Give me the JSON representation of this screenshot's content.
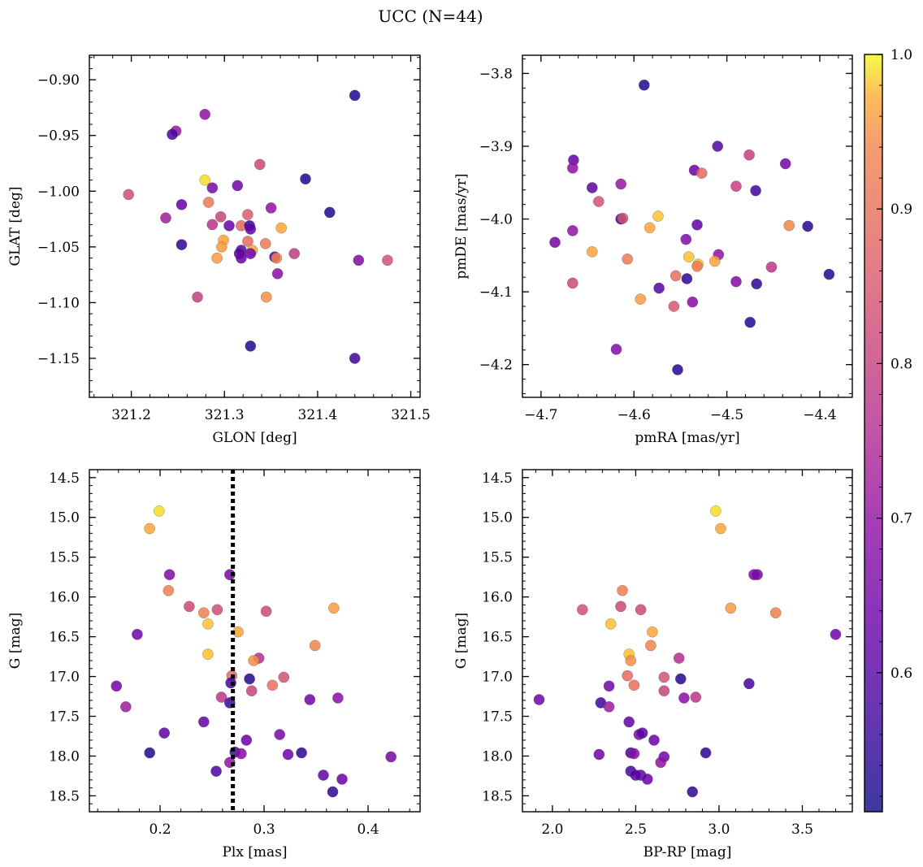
{
  "title": "UCC (N=44)",
  "colorbar": {
    "ticks": [
      "1.0",
      "0.9",
      "0.8",
      "0.7",
      "0.6"
    ],
    "tick_values": [
      1.0,
      0.9,
      0.8,
      0.7,
      0.6
    ],
    "vmin": 0.51,
    "vmax": 1.0,
    "colormap": "plasma"
  },
  "chart_data": [
    {
      "type": "scatter",
      "xlabel": "GLON [deg]",
      "ylabel": "GLAT [deg]",
      "xlim": [
        321.155,
        321.51
      ],
      "ylim": [
        -1.185,
        -0.878
      ],
      "invert_y": false,
      "xticks": [
        321.2,
        321.3,
        321.4,
        321.5
      ],
      "xticklabels": [
        "321.2",
        "321.3",
        "321.4",
        "321.5"
      ],
      "yticks": [
        -0.9,
        -0.95,
        -1.0,
        -1.05,
        -1.1,
        -1.15
      ],
      "yticklabels": [
        "−0.90",
        "−0.95",
        "−1.00",
        "−1.05",
        "−1.10",
        "−1.15"
      ],
      "points": [
        {
          "x": 321.44,
          "y": -0.914,
          "c": 0.53
        },
        {
          "x": 321.279,
          "y": -0.931,
          "c": 0.7
        },
        {
          "x": 321.248,
          "y": -0.946,
          "c": 0.71
        },
        {
          "x": 321.244,
          "y": -0.949,
          "c": 0.58
        },
        {
          "x": 321.338,
          "y": -0.976,
          "c": 0.82
        },
        {
          "x": 321.279,
          "y": -0.99,
          "c": 0.99
        },
        {
          "x": 321.387,
          "y": -0.989,
          "c": 0.53
        },
        {
          "x": 321.287,
          "y": -0.997,
          "c": 0.66
        },
        {
          "x": 321.314,
          "y": -0.995,
          "c": 0.64
        },
        {
          "x": 321.197,
          "y": -1.003,
          "c": 0.83
        },
        {
          "x": 321.254,
          "y": -1.012,
          "c": 0.62
        },
        {
          "x": 321.283,
          "y": -1.01,
          "c": 0.92
        },
        {
          "x": 321.35,
          "y": -1.015,
          "c": 0.7
        },
        {
          "x": 321.413,
          "y": -1.019,
          "c": 0.53
        },
        {
          "x": 321.237,
          "y": -1.024,
          "c": 0.72
        },
        {
          "x": 321.296,
          "y": -1.023,
          "c": 0.81
        },
        {
          "x": 321.325,
          "y": -1.021,
          "c": 0.86
        },
        {
          "x": 321.287,
          "y": -1.03,
          "c": 0.77
        },
        {
          "x": 321.305,
          "y": -1.031,
          "c": 0.63
        },
        {
          "x": 321.318,
          "y": -1.031,
          "c": 0.88
        },
        {
          "x": 321.327,
          "y": -1.031,
          "c": 0.55
        },
        {
          "x": 321.361,
          "y": -1.033,
          "c": 0.97
        },
        {
          "x": 321.254,
          "y": -1.048,
          "c": 0.55
        },
        {
          "x": 321.299,
          "y": -1.044,
          "c": 0.97
        },
        {
          "x": 321.297,
          "y": -1.05,
          "c": 0.96
        },
        {
          "x": 321.325,
          "y": -1.045,
          "c": 0.89
        },
        {
          "x": 321.344,
          "y": -1.047,
          "c": 0.92
        },
        {
          "x": 321.318,
          "y": -1.053,
          "c": 0.6
        },
        {
          "x": 321.33,
          "y": -1.053,
          "c": 0.97
        },
        {
          "x": 321.316,
          "y": -1.056,
          "c": 0.6
        },
        {
          "x": 321.328,
          "y": -1.056,
          "c": 0.64
        },
        {
          "x": 321.354,
          "y": -1.059,
          "c": 0.57
        },
        {
          "x": 321.356,
          "y": -1.06,
          "c": 0.94
        },
        {
          "x": 321.375,
          "y": -1.056,
          "c": 0.79
        },
        {
          "x": 321.292,
          "y": -1.06,
          "c": 0.96
        },
        {
          "x": 321.318,
          "y": -1.06,
          "c": 0.63
        },
        {
          "x": 321.444,
          "y": -1.062,
          "c": 0.67
        },
        {
          "x": 321.475,
          "y": -1.062,
          "c": 0.84
        },
        {
          "x": 321.357,
          "y": -1.074,
          "c": 0.69
        },
        {
          "x": 321.271,
          "y": -1.095,
          "c": 0.8
        },
        {
          "x": 321.345,
          "y": -1.095,
          "c": 0.95
        },
        {
          "x": 321.328,
          "y": -1.139,
          "c": 0.54
        },
        {
          "x": 321.44,
          "y": -1.15,
          "c": 0.57
        },
        {
          "x": 321.328,
          "y": -1.034,
          "c": 0.62
        }
      ]
    },
    {
      "type": "scatter",
      "xlabel": "pmRA [mas/yr]",
      "ylabel": "pmDE [mas/yr]",
      "xlim": [
        -4.72,
        -4.365
      ],
      "ylim": [
        -4.245,
        -3.775
      ],
      "invert_y": false,
      "xticks": [
        -4.7,
        -4.6,
        -4.5,
        -4.4
      ],
      "xticklabels": [
        "−4.7",
        "−4.6",
        "−4.5",
        "−4.4"
      ],
      "yticks": [
        -3.8,
        -3.9,
        -4.0,
        -4.1,
        -4.2
      ],
      "yticklabels": [
        "−3.8",
        "−3.9",
        "−4.0",
        "−4.1",
        "−4.2"
      ],
      "points": [
        {
          "x": -4.589,
          "y": -3.816,
          "c": 0.53
        },
        {
          "x": -4.51,
          "y": -3.9,
          "c": 0.6
        },
        {
          "x": -4.476,
          "y": -3.912,
          "c": 0.8
        },
        {
          "x": -4.665,
          "y": -3.919,
          "c": 0.62
        },
        {
          "x": -4.666,
          "y": -3.93,
          "c": 0.7
        },
        {
          "x": -4.437,
          "y": -3.924,
          "c": 0.65
        },
        {
          "x": -4.535,
          "y": -3.933,
          "c": 0.63
        },
        {
          "x": -4.527,
          "y": -3.937,
          "c": 0.89
        },
        {
          "x": -4.614,
          "y": -3.952,
          "c": 0.71
        },
        {
          "x": -4.645,
          "y": -3.957,
          "c": 0.61
        },
        {
          "x": -4.49,
          "y": -3.955,
          "c": 0.8
        },
        {
          "x": -4.469,
          "y": -3.961,
          "c": 0.57
        },
        {
          "x": -4.638,
          "y": -3.976,
          "c": 0.84
        },
        {
          "x": -4.574,
          "y": -3.996,
          "c": 0.98
        },
        {
          "x": -4.614,
          "y": -4.0,
          "c": 0.55
        },
        {
          "x": -4.612,
          "y": -3.999,
          "c": 0.84
        },
        {
          "x": -4.532,
          "y": -4.008,
          "c": 0.62
        },
        {
          "x": -4.583,
          "y": -4.012,
          "c": 0.97
        },
        {
          "x": -4.433,
          "y": -4.009,
          "c": 0.94
        },
        {
          "x": -4.413,
          "y": -4.01,
          "c": 0.54
        },
        {
          "x": -4.666,
          "y": -4.016,
          "c": 0.7
        },
        {
          "x": -4.685,
          "y": -4.032,
          "c": 0.65
        },
        {
          "x": -4.544,
          "y": -4.028,
          "c": 0.67
        },
        {
          "x": -4.645,
          "y": -4.045,
          "c": 0.97
        },
        {
          "x": -4.509,
          "y": -4.049,
          "c": 0.7
        },
        {
          "x": -4.607,
          "y": -4.055,
          "c": 0.92
        },
        {
          "x": -4.541,
          "y": -4.052,
          "c": 0.98
        },
        {
          "x": -4.513,
          "y": -4.058,
          "c": 0.97
        },
        {
          "x": -4.531,
          "y": -4.062,
          "c": 0.98
        },
        {
          "x": -4.532,
          "y": -4.065,
          "c": 0.92
        },
        {
          "x": -4.452,
          "y": -4.066,
          "c": 0.78
        },
        {
          "x": -4.39,
          "y": -4.076,
          "c": 0.54
        },
        {
          "x": -4.555,
          "y": -4.078,
          "c": 0.9
        },
        {
          "x": -4.543,
          "y": -4.082,
          "c": 0.55
        },
        {
          "x": -4.666,
          "y": -4.088,
          "c": 0.82
        },
        {
          "x": -4.49,
          "y": -4.086,
          "c": 0.67
        },
        {
          "x": -4.468,
          "y": -4.089,
          "c": 0.55
        },
        {
          "x": -4.573,
          "y": -4.095,
          "c": 0.6
        },
        {
          "x": -4.593,
          "y": -4.11,
          "c": 0.96
        },
        {
          "x": -4.537,
          "y": -4.114,
          "c": 0.68
        },
        {
          "x": -4.557,
          "y": -4.12,
          "c": 0.85
        },
        {
          "x": -4.475,
          "y": -4.142,
          "c": 0.54
        },
        {
          "x": -4.619,
          "y": -4.179,
          "c": 0.67
        },
        {
          "x": -4.553,
          "y": -4.207,
          "c": 0.54
        }
      ]
    },
    {
      "type": "scatter",
      "xlabel": "Plx [mas]",
      "ylabel": "G [mag]",
      "xlim": [
        0.132,
        0.45
      ],
      "ylim": [
        18.7,
        14.4
      ],
      "invert_y": true,
      "xticks": [
        0.2,
        0.3,
        0.4
      ],
      "xticklabels": [
        "0.2",
        "0.3",
        "0.4"
      ],
      "yticks": [
        14.5,
        15.0,
        15.5,
        16.0,
        16.5,
        17.0,
        17.5,
        18.0,
        18.5
      ],
      "yticklabels": [
        "14.5",
        "15.0",
        "15.5",
        "16.0",
        "16.5",
        "17.0",
        "17.5",
        "18.0",
        "18.5"
      ],
      "vline": {
        "x": 0.27,
        "style": "dotted"
      },
      "points": [
        {
          "x": 0.199,
          "y": 14.92,
          "c": 0.99
        },
        {
          "x": 0.19,
          "y": 15.14,
          "c": 0.97
        },
        {
          "x": 0.209,
          "y": 15.72,
          "c": 0.67
        },
        {
          "x": 0.267,
          "y": 15.72,
          "c": 0.66
        },
        {
          "x": 0.208,
          "y": 15.92,
          "c": 0.93
        },
        {
          "x": 0.228,
          "y": 16.12,
          "c": 0.82
        },
        {
          "x": 0.255,
          "y": 16.16,
          "c": 0.83
        },
        {
          "x": 0.367,
          "y": 16.14,
          "c": 0.96
        },
        {
          "x": 0.302,
          "y": 16.18,
          "c": 0.82
        },
        {
          "x": 0.242,
          "y": 16.2,
          "c": 0.93
        },
        {
          "x": 0.246,
          "y": 16.34,
          "c": 0.98
        },
        {
          "x": 0.275,
          "y": 16.44,
          "c": 0.97
        },
        {
          "x": 0.178,
          "y": 16.47,
          "c": 0.64
        },
        {
          "x": 0.349,
          "y": 16.61,
          "c": 0.94
        },
        {
          "x": 0.246,
          "y": 16.72,
          "c": 0.98
        },
        {
          "x": 0.295,
          "y": 16.77,
          "c": 0.76
        },
        {
          "x": 0.29,
          "y": 16.8,
          "c": 0.95
        },
        {
          "x": 0.269,
          "y": 16.99,
          "c": 0.89
        },
        {
          "x": 0.319,
          "y": 17.01,
          "c": 0.84
        },
        {
          "x": 0.286,
          "y": 17.03,
          "c": 0.54
        },
        {
          "x": 0.268,
          "y": 17.08,
          "c": 0.58
        },
        {
          "x": 0.308,
          "y": 17.11,
          "c": 0.9
        },
        {
          "x": 0.158,
          "y": 17.12,
          "c": 0.64
        },
        {
          "x": 0.288,
          "y": 17.18,
          "c": 0.81
        },
        {
          "x": 0.259,
          "y": 17.26,
          "c": 0.78
        },
        {
          "x": 0.371,
          "y": 17.27,
          "c": 0.69
        },
        {
          "x": 0.344,
          "y": 17.29,
          "c": 0.64
        },
        {
          "x": 0.267,
          "y": 17.33,
          "c": 0.57
        },
        {
          "x": 0.167,
          "y": 17.38,
          "c": 0.72
        },
        {
          "x": 0.242,
          "y": 17.57,
          "c": 0.62
        },
        {
          "x": 0.204,
          "y": 17.71,
          "c": 0.61
        },
        {
          "x": 0.315,
          "y": 17.73,
          "c": 0.66
        },
        {
          "x": 0.283,
          "y": 17.8,
          "c": 0.63
        },
        {
          "x": 0.19,
          "y": 17.96,
          "c": 0.54
        },
        {
          "x": 0.272,
          "y": 17.95,
          "c": 0.58
        },
        {
          "x": 0.278,
          "y": 17.97,
          "c": 0.68
        },
        {
          "x": 0.336,
          "y": 17.96,
          "c": 0.55
        },
        {
          "x": 0.323,
          "y": 17.98,
          "c": 0.64
        },
        {
          "x": 0.422,
          "y": 18.01,
          "c": 0.65
        },
        {
          "x": 0.267,
          "y": 18.08,
          "c": 0.7
        },
        {
          "x": 0.254,
          "y": 18.19,
          "c": 0.58
        },
        {
          "x": 0.357,
          "y": 18.24,
          "c": 0.62
        },
        {
          "x": 0.375,
          "y": 18.29,
          "c": 0.63
        },
        {
          "x": 0.366,
          "y": 18.45,
          "c": 0.55
        }
      ]
    },
    {
      "type": "scatter",
      "xlabel": "BP-RP [mag]",
      "ylabel": "G [mag]",
      "xlim": [
        1.82,
        3.8
      ],
      "ylim": [
        18.7,
        14.4
      ],
      "invert_y": true,
      "xticks": [
        2.0,
        2.5,
        3.0,
        3.5
      ],
      "xticklabels": [
        "2.0",
        "2.5",
        "3.0",
        "3.5"
      ],
      "yticks": [
        14.5,
        15.0,
        15.5,
        16.0,
        16.5,
        17.0,
        17.5,
        18.0,
        18.5
      ],
      "yticklabels": [
        "14.5",
        "15.0",
        "15.5",
        "16.0",
        "16.5",
        "17.0",
        "17.5",
        "18.0",
        "18.5"
      ],
      "points": [
        {
          "x": 2.98,
          "y": 14.92,
          "c": 0.99
        },
        {
          "x": 3.01,
          "y": 15.14,
          "c": 0.97
        },
        {
          "x": 3.21,
          "y": 15.72,
          "c": 0.67
        },
        {
          "x": 3.23,
          "y": 15.72,
          "c": 0.66
        },
        {
          "x": 2.42,
          "y": 15.92,
          "c": 0.93
        },
        {
          "x": 2.41,
          "y": 16.12,
          "c": 0.82
        },
        {
          "x": 2.18,
          "y": 16.16,
          "c": 0.83
        },
        {
          "x": 2.53,
          "y": 16.16,
          "c": 0.82
        },
        {
          "x": 3.07,
          "y": 16.14,
          "c": 0.96
        },
        {
          "x": 3.34,
          "y": 16.2,
          "c": 0.93
        },
        {
          "x": 2.35,
          "y": 16.34,
          "c": 0.98
        },
        {
          "x": 2.6,
          "y": 16.44,
          "c": 0.97
        },
        {
          "x": 3.7,
          "y": 16.47,
          "c": 0.64
        },
        {
          "x": 2.59,
          "y": 16.61,
          "c": 0.94
        },
        {
          "x": 2.46,
          "y": 16.72,
          "c": 0.98
        },
        {
          "x": 2.47,
          "y": 16.8,
          "c": 0.95
        },
        {
          "x": 2.76,
          "y": 16.77,
          "c": 0.76
        },
        {
          "x": 2.45,
          "y": 16.99,
          "c": 0.89
        },
        {
          "x": 2.67,
          "y": 17.01,
          "c": 0.84
        },
        {
          "x": 2.77,
          "y": 17.03,
          "c": 0.54
        },
        {
          "x": 3.18,
          "y": 17.09,
          "c": 0.58
        },
        {
          "x": 2.49,
          "y": 17.11,
          "c": 0.9
        },
        {
          "x": 2.34,
          "y": 17.12,
          "c": 0.64
        },
        {
          "x": 2.67,
          "y": 17.18,
          "c": 0.81
        },
        {
          "x": 2.86,
          "y": 17.26,
          "c": 0.78
        },
        {
          "x": 2.79,
          "y": 17.27,
          "c": 0.69
        },
        {
          "x": 1.92,
          "y": 17.29,
          "c": 0.64
        },
        {
          "x": 2.29,
          "y": 17.33,
          "c": 0.57
        },
        {
          "x": 2.34,
          "y": 17.38,
          "c": 0.72
        },
        {
          "x": 2.46,
          "y": 17.57,
          "c": 0.62
        },
        {
          "x": 2.52,
          "y": 17.73,
          "c": 0.66
        },
        {
          "x": 2.54,
          "y": 17.71,
          "c": 0.61
        },
        {
          "x": 2.61,
          "y": 17.8,
          "c": 0.63
        },
        {
          "x": 2.47,
          "y": 17.96,
          "c": 0.58
        },
        {
          "x": 2.49,
          "y": 17.97,
          "c": 0.68
        },
        {
          "x": 2.92,
          "y": 17.96,
          "c": 0.55
        },
        {
          "x": 2.28,
          "y": 17.98,
          "c": 0.64
        },
        {
          "x": 2.67,
          "y": 18.01,
          "c": 0.65
        },
        {
          "x": 2.65,
          "y": 18.08,
          "c": 0.7
        },
        {
          "x": 2.47,
          "y": 18.19,
          "c": 0.58
        },
        {
          "x": 2.53,
          "y": 18.24,
          "c": 0.62
        },
        {
          "x": 2.57,
          "y": 18.29,
          "c": 0.63
        },
        {
          "x": 2.84,
          "y": 18.45,
          "c": 0.55
        },
        {
          "x": 2.5,
          "y": 18.24,
          "c": 0.6
        }
      ]
    }
  ]
}
